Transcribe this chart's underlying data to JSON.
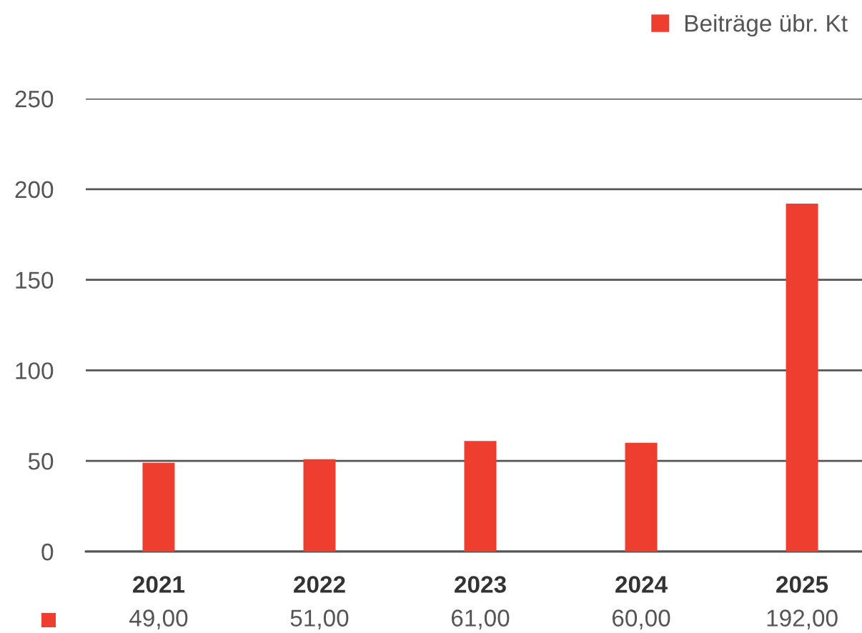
{
  "chart_data": {
    "type": "bar",
    "categories": [
      "2021",
      "2022",
      "2023",
      "2024",
      "2025"
    ],
    "series": [
      {
        "name": "Beiträge übr. Kt",
        "color": "#ee3e2f",
        "values": [
          49,
          51,
          61,
          60,
          192
        ],
        "value_labels": [
          "49,00",
          "51,00",
          "61,00",
          "60,00",
          "192,00"
        ]
      }
    ],
    "ylim": [
      0,
      250
    ],
    "yticks": [
      0,
      50,
      100,
      150,
      200,
      250
    ],
    "grid": "y",
    "legend": "top right"
  }
}
